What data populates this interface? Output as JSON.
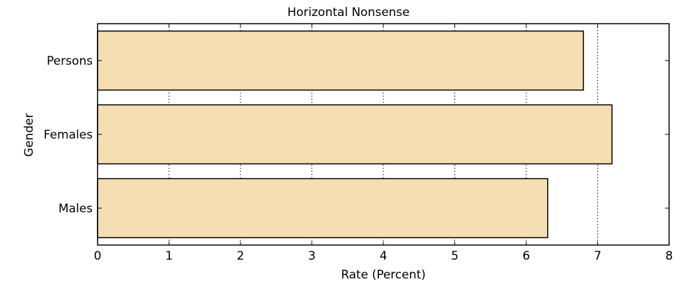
{
  "chart_data": {
    "type": "bar",
    "orientation": "horizontal",
    "title": "Horizontal Nonsense",
    "xlabel": "Rate (Percent)",
    "ylabel": "Gender",
    "categories": [
      "Males",
      "Females",
      "Persons"
    ],
    "values": [
      6.3,
      7.2,
      6.8
    ],
    "xlim": [
      0,
      8
    ],
    "xticks": [
      "0",
      "1",
      "2",
      "3",
      "4",
      "5",
      "6",
      "7",
      "8"
    ],
    "grid": "x-axis, dotted",
    "legend": "none",
    "colors": {
      "bar_fill": "#F5DEB3",
      "bar_edge": "#000000",
      "grid": "#000000"
    }
  }
}
